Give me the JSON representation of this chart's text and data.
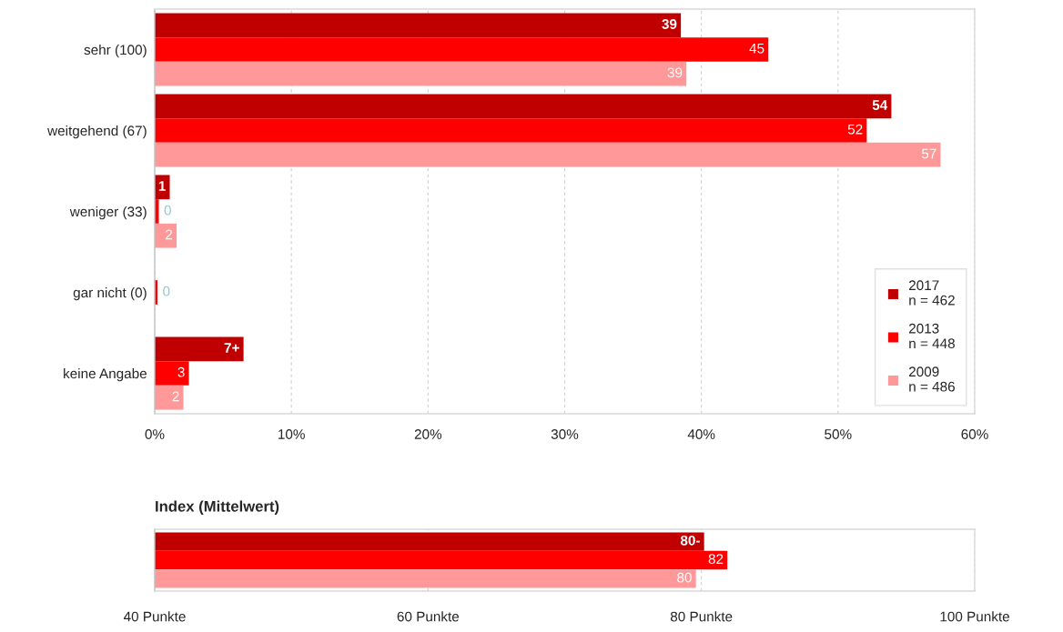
{
  "chart_data": [
    {
      "type": "bar",
      "orientation": "horizontal",
      "categories": [
        "sehr (100)",
        "weitgehend (67)",
        "weniger (33)",
        "gar nicht (0)",
        "keine Angabe"
      ],
      "series": [
        {
          "name": "2017\nn = 462",
          "color": "#c00000",
          "values": [
            38.5,
            53.9,
            1.1,
            null,
            6.5
          ],
          "value_labels": [
            "39",
            "54",
            "1",
            null,
            "7+"
          ]
        },
        {
          "name": "2013\nn = 448",
          "color": "#ff0000",
          "values": [
            44.9,
            52.1,
            0.3,
            0.2,
            2.5
          ],
          "value_labels": [
            "45",
            "52",
            "0",
            "0",
            "3"
          ]
        },
        {
          "name": "2009\nn = 486",
          "color": "#ff9999",
          "values": [
            38.9,
            57.5,
            1.6,
            null,
            2.1
          ],
          "value_labels": [
            "39",
            "57",
            "2",
            null,
            "2"
          ]
        }
      ],
      "xlim": [
        0,
        60
      ],
      "xticks": [
        {
          "value": 0,
          "label": "0%"
        },
        {
          "value": 10,
          "label": "10%"
        },
        {
          "value": 20,
          "label": "20%"
        },
        {
          "value": 30,
          "label": "30%"
        },
        {
          "value": 40,
          "label": "40%"
        },
        {
          "value": 50,
          "label": "50%"
        },
        {
          "value": 60,
          "label": "60%"
        }
      ],
      "grid": "x",
      "legend": "bottom right"
    },
    {
      "type": "bar",
      "orientation": "horizontal",
      "title": "Index (Mittelwert)",
      "categories": [
        null
      ],
      "series": [
        {
          "color": "#c00000",
          "values": [
            80.2
          ],
          "value_labels": [
            "80-"
          ]
        },
        {
          "color": "#ff0000",
          "values": [
            81.9
          ],
          "value_labels": [
            "82"
          ]
        },
        {
          "color": "#ff9999",
          "values": [
            79.6
          ],
          "value_labels": [
            "80"
          ]
        }
      ],
      "xlim": [
        40,
        100
      ],
      "xticks": [
        {
          "value": 40,
          "label": "40 Punkte"
        },
        {
          "value": 60,
          "label": "60 Punkte"
        },
        {
          "value": 80,
          "label": "80 Punkte"
        },
        {
          "value": 100,
          "label": "100 Punkte"
        }
      ],
      "grid": "x"
    }
  ]
}
